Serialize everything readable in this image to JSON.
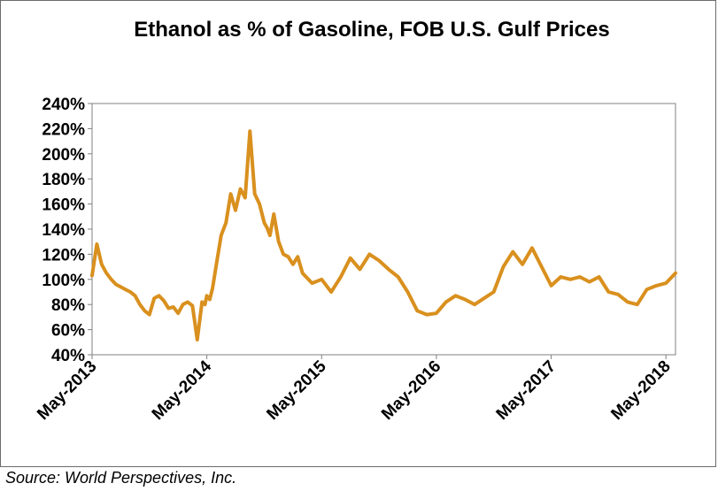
{
  "chart_data": {
    "type": "line",
    "title": "Ethanol as %  of Gasoline, FOB U.S. Gulf Prices",
    "xlabel": "",
    "ylabel": "",
    "y_tick_labels": [
      "40%",
      "60%",
      "80%",
      "100%",
      "120%",
      "140%",
      "160%",
      "180%",
      "200%",
      "220%",
      "240%"
    ],
    "ylim": [
      40,
      240
    ],
    "x_tick_labels": [
      "May-2013",
      "May-2014",
      "May-2015",
      "May-2016",
      "May-2017",
      "May-2018"
    ],
    "xlim": [
      0,
      61
    ],
    "grid": false,
    "legend": "none",
    "color": "#D9901E",
    "series": [
      {
        "x": [
          0,
          0.5,
          1,
          1.5,
          2,
          2.5,
          3,
          3.5,
          4,
          4.5,
          5,
          5.5,
          6,
          6.5,
          7,
          7.5,
          8,
          8.5,
          9,
          9.5,
          10,
          10.5,
          11,
          11.5,
          11.8,
          12,
          12.3,
          12.6,
          13,
          13.5,
          14,
          14.5,
          15,
          15.5,
          16,
          16.5,
          17,
          17.5,
          18,
          18.3,
          18.6,
          19,
          19.5,
          20,
          20.5,
          21,
          21.5,
          22,
          23,
          24,
          25,
          26,
          27,
          28,
          29,
          30,
          31,
          32,
          33,
          34,
          35,
          36,
          37,
          38,
          39,
          40,
          41,
          42,
          43,
          44,
          45,
          46,
          47,
          48,
          49,
          50,
          51,
          52,
          53,
          54,
          55,
          56,
          57,
          58,
          59,
          60,
          61
        ],
        "values": [
          103,
          128,
          112,
          105,
          100,
          96,
          94,
          92,
          90,
          87,
          80,
          75,
          72,
          85,
          87,
          83,
          77,
          78,
          73,
          80,
          82,
          79,
          52,
          82,
          80,
          87,
          84,
          93,
          112,
          135,
          145,
          168,
          155,
          172,
          165,
          218,
          168,
          160,
          145,
          141,
          135,
          152,
          130,
          120,
          118,
          112,
          118,
          105,
          97,
          100,
          90,
          102,
          117,
          108,
          120,
          115,
          108,
          102,
          90,
          75,
          72,
          73,
          82,
          87,
          84,
          80,
          85,
          90,
          110,
          122,
          112,
          125,
          110,
          95,
          102,
          100,
          102,
          98,
          102,
          90,
          88,
          82,
          80,
          92,
          95,
          97,
          105
        ]
      }
    ]
  },
  "source": "Source: World Perspectives, Inc."
}
